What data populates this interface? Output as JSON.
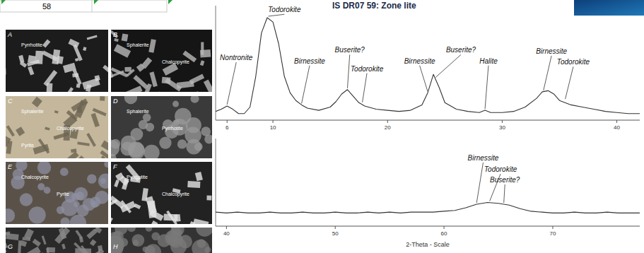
{
  "header": {
    "cell": "58",
    "title": "IS DR07 59: Zone lite"
  },
  "micrographs": [
    {
      "letter": "A",
      "labels": [
        "Pyrrhotite"
      ]
    },
    {
      "letter": "B",
      "labels": [
        "Sphalerite",
        "Chalcopyrite"
      ]
    },
    {
      "letter": "C",
      "labels": [
        "Sphalerite",
        "Chalcopyrite",
        "Pyrite"
      ]
    },
    {
      "letter": "D",
      "labels": [
        "Sphalerite",
        "Pyrrhotite"
      ]
    },
    {
      "letter": "E",
      "labels": [
        "Chalcopyrite",
        "Pyrite"
      ]
    },
    {
      "letter": "F",
      "labels": [
        "Pyrrhotite",
        "Chalcopyrite"
      ]
    },
    {
      "letter": "G",
      "labels": []
    },
    {
      "letter": "H",
      "labels": []
    }
  ],
  "chart_data": [
    {
      "type": "line",
      "x": [
        5,
        5.5,
        6,
        6.5,
        7,
        7.5,
        8,
        8.5,
        9,
        9.5,
        10,
        10.5,
        11,
        11.5,
        12,
        12.5,
        13,
        14,
        15,
        15.5,
        16,
        16.5,
        17,
        17.5,
        18,
        19,
        20,
        21,
        22,
        23,
        23.5,
        24,
        24.5,
        25,
        26,
        27,
        28,
        28.5,
        29,
        30,
        31,
        32,
        33,
        33.5,
        34,
        34.5,
        35,
        36,
        37,
        38,
        39,
        40,
        41,
        42
      ],
      "values": [
        8,
        10,
        13,
        10,
        6,
        6,
        12,
        40,
        80,
        94,
        90,
        70,
        40,
        25,
        18,
        14,
        11,
        9,
        12,
        17,
        24,
        28,
        22,
        16,
        13,
        10,
        9,
        8,
        9,
        14,
        25,
        42,
        30,
        16,
        10,
        8,
        7,
        9,
        7,
        7,
        8,
        12,
        20,
        26,
        27,
        24,
        18,
        14,
        12,
        10,
        8,
        7,
        6,
        6
      ],
      "color": "#333333",
      "xlim": [
        5,
        42
      ],
      "xticks": [
        6,
        10,
        20,
        30,
        40
      ],
      "ylim": [
        0,
        105
      ],
      "grid": false,
      "tick_labels": "x",
      "annotations": [
        {
          "text": "Nontronite",
          "x": 6,
          "y": 13,
          "text_x": 6.8,
          "text_y": 55
        },
        {
          "text": "Todorokite",
          "x": 9.6,
          "y": 94,
          "text_x": 11,
          "text_y": 99
        },
        {
          "text": "Birnessite",
          "x": 12.5,
          "y": 14,
          "text_x": 13.2,
          "text_y": 52
        },
        {
          "text": "Buserite?",
          "x": 16.5,
          "y": 28,
          "text_x": 16.7,
          "text_y": 62
        },
        {
          "text": "Todorokite",
          "x": 17.8,
          "y": 15,
          "text_x": 18.2,
          "text_y": 45
        },
        {
          "text": "Birnessite",
          "x": 23.5,
          "y": 25,
          "text_x": 22.8,
          "text_y": 52
        },
        {
          "text": "Buserite?",
          "x": 24.2,
          "y": 38,
          "text_x": 26.4,
          "text_y": 62
        },
        {
          "text": "Halite",
          "x": 28.5,
          "y": 9,
          "text_x": 28.8,
          "text_y": 52
        },
        {
          "text": "Birnessite",
          "x": 33.6,
          "y": 26,
          "text_x": 34.3,
          "text_y": 61
        },
        {
          "text": "Todorokite",
          "x": 35.5,
          "y": 18,
          "text_x": 36.2,
          "text_y": 51
        }
      ]
    },
    {
      "type": "line",
      "x": [
        39,
        40,
        41,
        42,
        43,
        44,
        45,
        46,
        47,
        48,
        49,
        50,
        51,
        52,
        53,
        54,
        55,
        56,
        57,
        58,
        59,
        60,
        61,
        62,
        63,
        64,
        65,
        66,
        67,
        68,
        69,
        70,
        71,
        72,
        73,
        74,
        75,
        76,
        77,
        78
      ],
      "values": [
        16,
        15,
        16,
        15,
        15,
        16,
        15,
        15,
        16,
        15,
        15,
        16,
        15,
        15,
        16,
        15,
        16,
        15,
        16,
        16,
        16,
        17,
        18,
        21,
        25,
        27,
        26,
        24,
        20,
        17,
        16,
        15,
        15,
        16,
        15,
        15,
        16,
        15,
        15,
        15
      ],
      "color": "#333333",
      "xlim": [
        39,
        78
      ],
      "xticks": [
        40,
        50,
        60,
        70
      ],
      "ylim": [
        0,
        100
      ],
      "grid": false,
      "tick_labels": "x",
      "xlabel": "2-Theta - Scale",
      "annotations": [
        {
          "text": "Birnessite",
          "x": 63,
          "y": 25,
          "text_x": 63.6,
          "text_y": 75
        },
        {
          "text": "Todorokite",
          "x": 64.2,
          "y": 27,
          "text_x": 65.2,
          "text_y": 62
        },
        {
          "text": "Buserite?",
          "x": 65.5,
          "y": 25,
          "text_x": 65.6,
          "text_y": 50
        }
      ]
    }
  ]
}
